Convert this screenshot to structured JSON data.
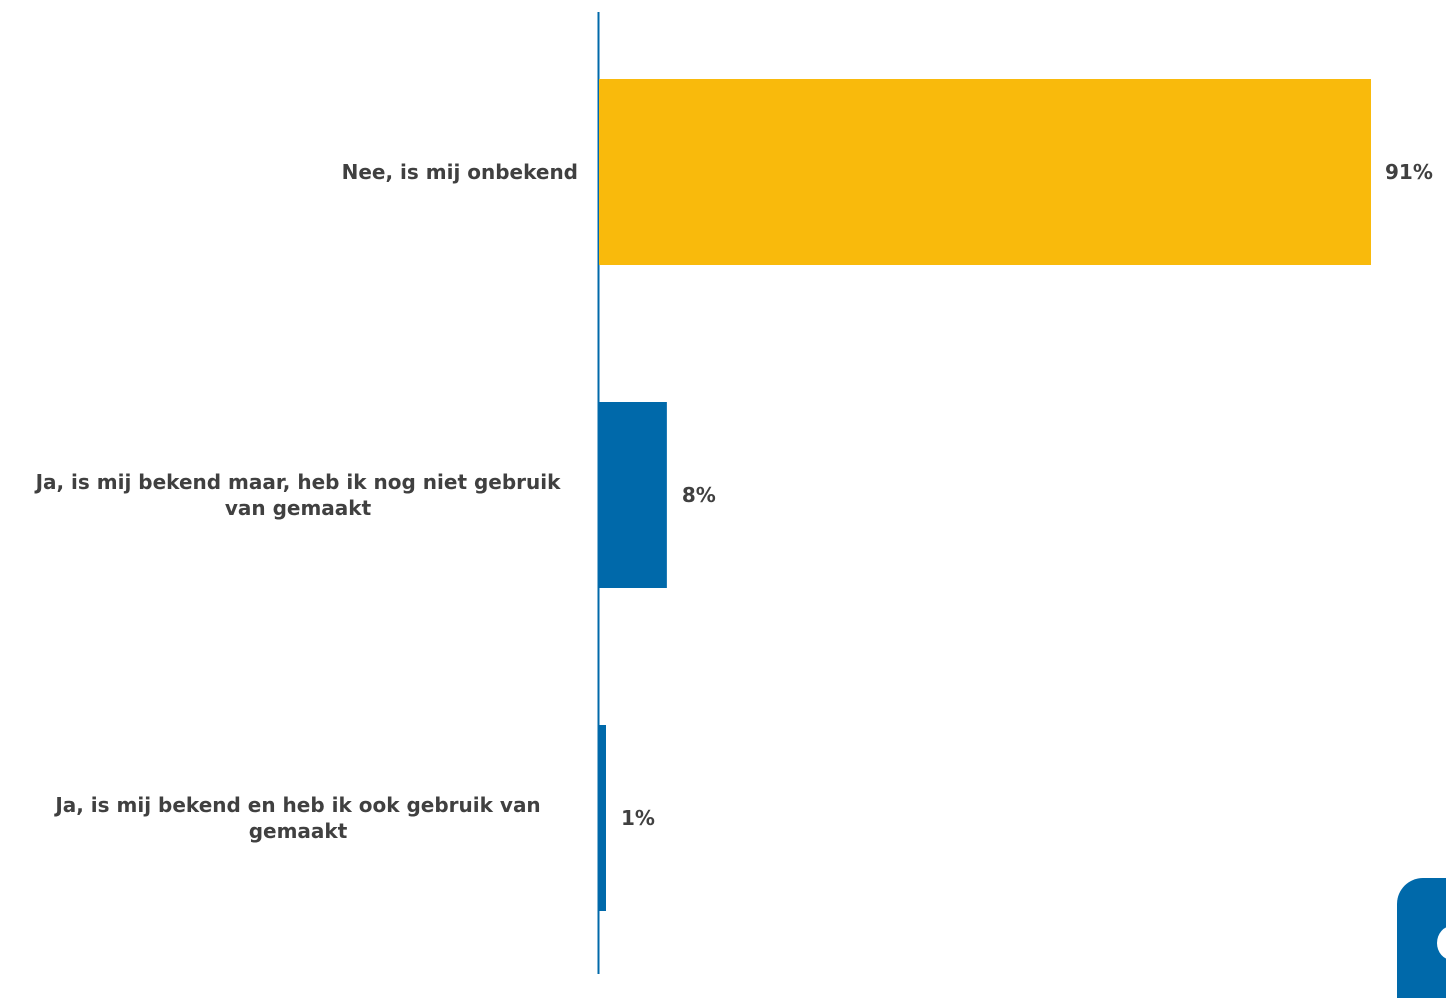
{
  "chart_data": {
    "type": "bar",
    "orientation": "horizontal",
    "categories": [
      "Nee, is mij onbekend",
      "Ja, is mij bekend maar, heb ik nog niet gebruik van gemaakt",
      "Ja, is mij bekend en heb ik ook gebruik van gemaakt"
    ],
    "values": [
      91,
      8,
      1
    ],
    "value_labels": [
      "91%",
      "8%",
      "1%"
    ],
    "colors": [
      "#f9ba0c",
      "#0069aa",
      "#0069aa"
    ],
    "xlim": [
      0,
      100
    ],
    "grid": false,
    "legend": "none"
  },
  "decor": {
    "axis_color": "#0069aa",
    "badge_color": "#0069aa"
  }
}
